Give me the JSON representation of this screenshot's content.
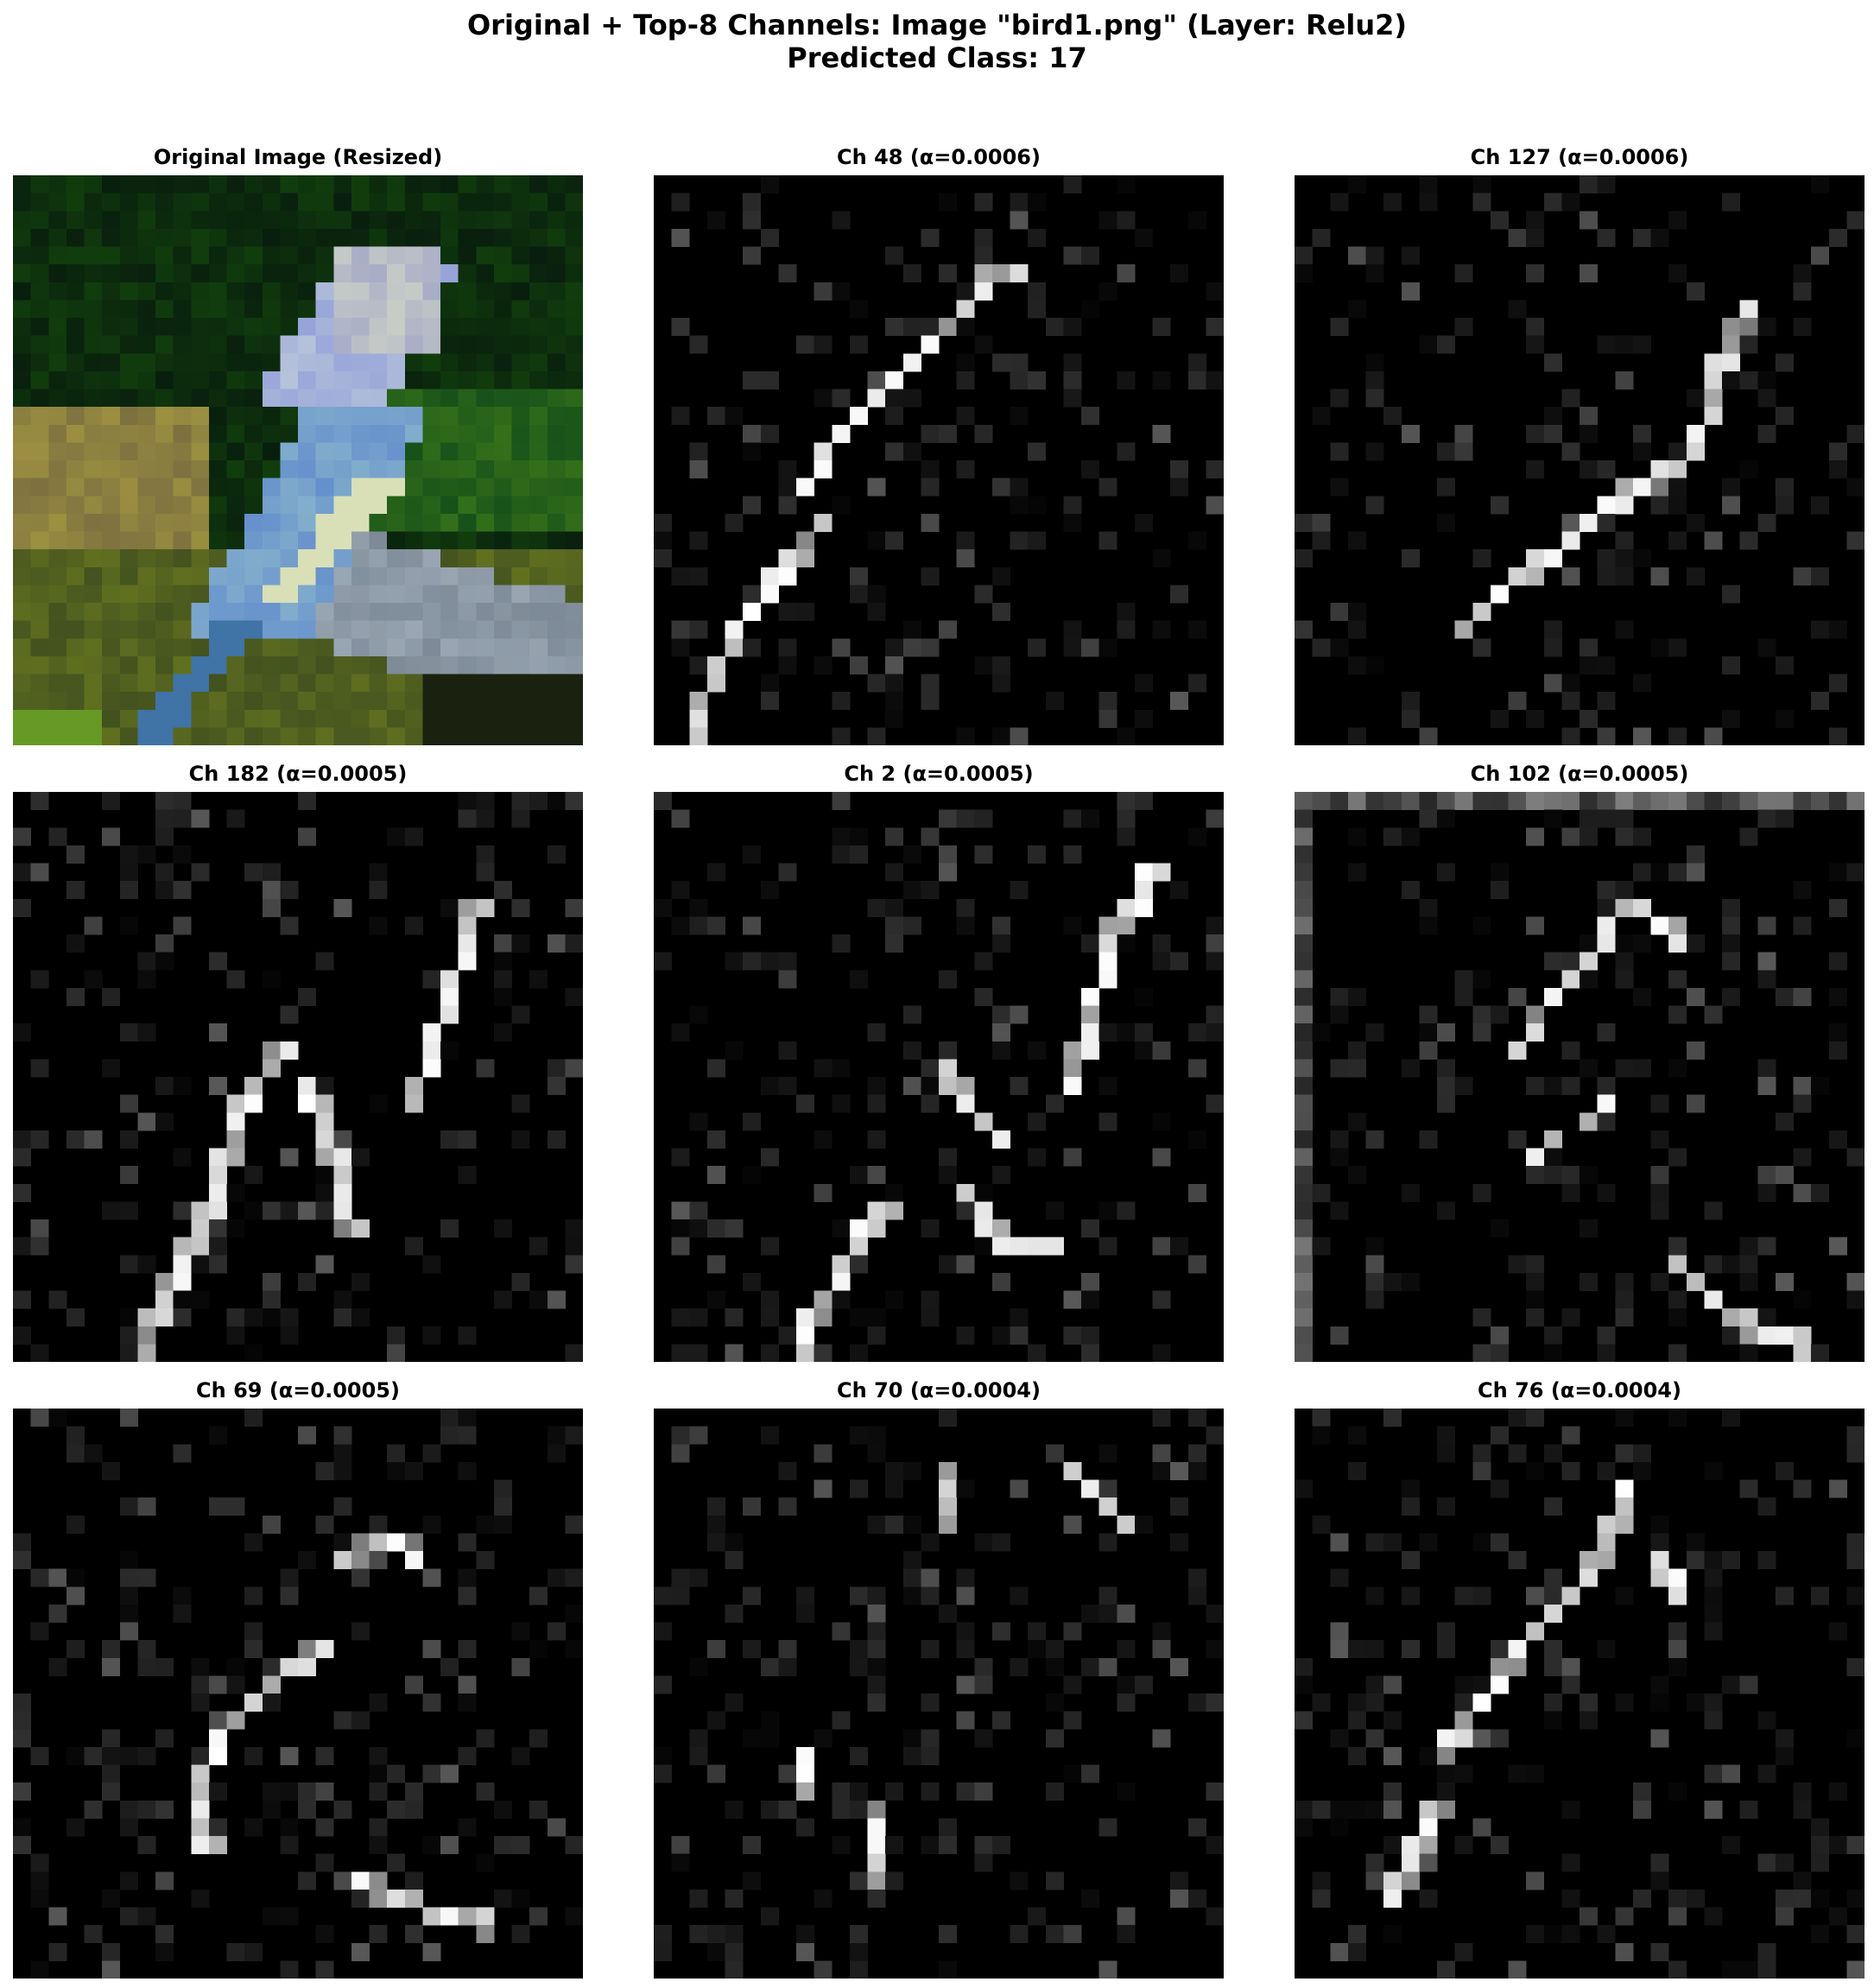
{
  "figure": {
    "title_line1": "Original + Top-8 Channels: Image \"bird1.png\" (Layer: Relu2)",
    "title_line2": "Predicted Class: 17"
  },
  "panels": [
    {
      "title": "Original Image (Resized)",
      "kind": "rgb"
    },
    {
      "title": "Ch 48 (α=0.0006)",
      "kind": "gray",
      "channel": 48,
      "alpha": 0.0006
    },
    {
      "title": "Ch 127 (α=0.0006)",
      "kind": "gray",
      "channel": 127,
      "alpha": 0.0006
    },
    {
      "title": "Ch 182 (α=0.0005)",
      "kind": "gray",
      "channel": 182,
      "alpha": 0.0005
    },
    {
      "title": "Ch 2 (α=0.0005)",
      "kind": "gray",
      "channel": 2,
      "alpha": 0.0005
    },
    {
      "title": "Ch 102 (α=0.0005)",
      "kind": "gray",
      "channel": 102,
      "alpha": 0.0005
    },
    {
      "title": "Ch 69 (α=0.0005)",
      "kind": "gray",
      "channel": 69,
      "alpha": 0.0005
    },
    {
      "title": "Ch 70 (α=0.0004)",
      "kind": "gray",
      "channel": 70,
      "alpha": 0.0004
    },
    {
      "title": "Ch 76 (α=0.0004)",
      "kind": "gray",
      "channel": 76,
      "alpha": 0.0004
    }
  ],
  "colors": {
    "background": "#ffffff",
    "text": "#000000",
    "activation_low": "#000000",
    "activation_high": "#ffffff"
  }
}
